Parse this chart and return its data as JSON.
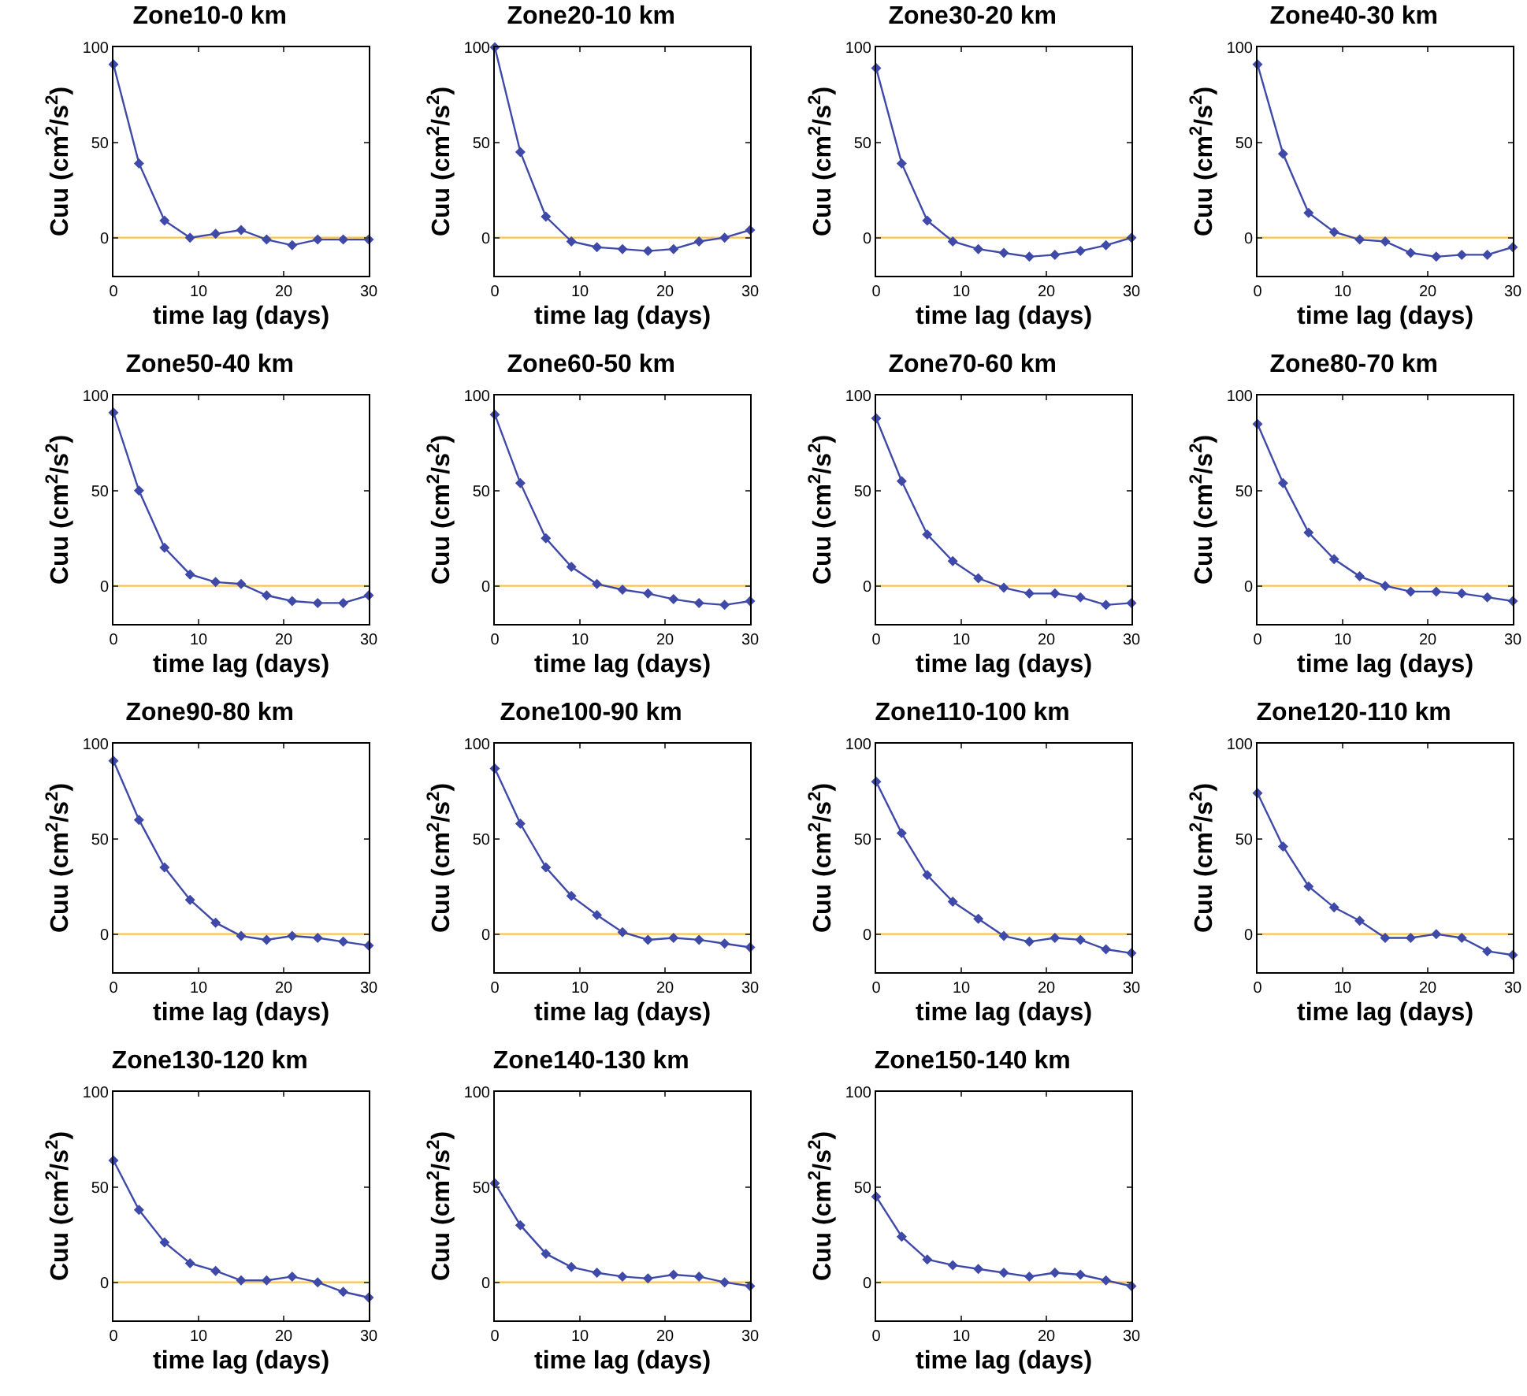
{
  "chart_data": [
    {
      "type": "line",
      "title": "Zone10-0 km",
      "xlabel": "time lag (days)",
      "ylabel": "Cuu (cm$^{2}$/s$^{2}$)",
      "x": [
        0,
        3,
        6,
        9,
        12,
        15,
        18,
        21,
        24,
        27,
        30
      ],
      "series": [
        {
          "color": "#3f4aa8",
          "values": [
            91,
            39,
            9,
            0,
            2,
            4,
            -1,
            -4,
            -1,
            -1,
            -1
          ]
        }
      ],
      "xlim": [
        0,
        30
      ],
      "ylim": [
        -20,
        100
      ],
      "xticks": [
        0,
        10,
        20,
        30
      ],
      "yticks": [
        0,
        50,
        100
      ],
      "ref_lines": [
        {
          "axis": "y",
          "value": 0,
          "color": "#ffc34a"
        }
      ],
      "marker": "diamond",
      "grid": false
    },
    {
      "type": "line",
      "title": "Zone20-10 km",
      "xlabel": "time lag (days)",
      "ylabel": "Cuu (cm$^{2}$/s$^{2}$)",
      "x": [
        0,
        3,
        6,
        9,
        12,
        15,
        18,
        21,
        24,
        27,
        30
      ],
      "series": [
        {
          "color": "#3f4aa8",
          "values": [
            100,
            45,
            11,
            -2,
            -5,
            -6,
            -7,
            -6,
            -2,
            0,
            4
          ]
        }
      ],
      "xlim": [
        0,
        30
      ],
      "ylim": [
        -20,
        100
      ],
      "xticks": [
        0,
        10,
        20,
        30
      ],
      "yticks": [
        0,
        50,
        100
      ],
      "ref_lines": [
        {
          "axis": "y",
          "value": 0,
          "color": "#ffc34a"
        }
      ],
      "marker": "diamond",
      "grid": false
    },
    {
      "type": "line",
      "title": "Zone30-20 km",
      "xlabel": "time lag (days)",
      "ylabel": "Cuu (cm$^{2}$/s$^{2}$)",
      "x": [
        0,
        3,
        6,
        9,
        12,
        15,
        18,
        21,
        24,
        27,
        30
      ],
      "series": [
        {
          "color": "#3f4aa8",
          "values": [
            89,
            39,
            9,
            -2,
            -6,
            -8,
            -10,
            -9,
            -7,
            -4,
            0
          ]
        }
      ],
      "xlim": [
        0,
        30
      ],
      "ylim": [
        -20,
        100
      ],
      "xticks": [
        0,
        10,
        20,
        30
      ],
      "yticks": [
        0,
        50,
        100
      ],
      "ref_lines": [
        {
          "axis": "y",
          "value": 0,
          "color": "#ffc34a"
        }
      ],
      "marker": "diamond",
      "grid": false
    },
    {
      "type": "line",
      "title": "Zone40-30 km",
      "xlabel": "time lag (days)",
      "ylabel": "Cuu (cm$^{2}$/s$^{2}$)",
      "x": [
        0,
        3,
        6,
        9,
        12,
        15,
        18,
        21,
        24,
        27,
        30
      ],
      "series": [
        {
          "color": "#3f4aa8",
          "values": [
            91,
            44,
            13,
            3,
            -1,
            -2,
            -8,
            -10,
            -9,
            -9,
            -5
          ]
        }
      ],
      "xlim": [
        0,
        30
      ],
      "ylim": [
        -20,
        100
      ],
      "xticks": [
        0,
        10,
        20,
        30
      ],
      "yticks": [
        0,
        50,
        100
      ],
      "ref_lines": [
        {
          "axis": "y",
          "value": 0,
          "color": "#ffc34a"
        }
      ],
      "marker": "diamond",
      "grid": false
    },
    {
      "type": "line",
      "title": "Zone50-40 km",
      "xlabel": "time lag (days)",
      "ylabel": "Cuu (cm$^{2}$/s$^{2}$)",
      "x": [
        0,
        3,
        6,
        9,
        12,
        15,
        18,
        21,
        24,
        27,
        30
      ],
      "series": [
        {
          "color": "#3f4aa8",
          "values": [
            91,
            50,
            20,
            6,
            2,
            1,
            -5,
            -8,
            -9,
            -9,
            -5
          ]
        }
      ],
      "xlim": [
        0,
        30
      ],
      "ylim": [
        -20,
        100
      ],
      "xticks": [
        0,
        10,
        20,
        30
      ],
      "yticks": [
        0,
        50,
        100
      ],
      "ref_lines": [
        {
          "axis": "y",
          "value": 0,
          "color": "#ffc34a"
        }
      ],
      "marker": "diamond",
      "grid": false
    },
    {
      "type": "line",
      "title": "Zone60-50 km",
      "xlabel": "time lag (days)",
      "ylabel": "Cuu (cm$^{2}$/s$^{2}$)",
      "x": [
        0,
        3,
        6,
        9,
        12,
        15,
        18,
        21,
        24,
        27,
        30
      ],
      "series": [
        {
          "color": "#3f4aa8",
          "values": [
            90,
            54,
            25,
            10,
            1,
            -2,
            -4,
            -7,
            -9,
            -10,
            -8
          ]
        }
      ],
      "xlim": [
        0,
        30
      ],
      "ylim": [
        -20,
        100
      ],
      "xticks": [
        0,
        10,
        20,
        30
      ],
      "yticks": [
        0,
        50,
        100
      ],
      "ref_lines": [
        {
          "axis": "y",
          "value": 0,
          "color": "#ffc34a"
        }
      ],
      "marker": "diamond",
      "grid": false
    },
    {
      "type": "line",
      "title": "Zone70-60 km",
      "xlabel": "time lag (days)",
      "ylabel": "Cuu (cm$^{2}$/s$^{2}$)",
      "x": [
        0,
        3,
        6,
        9,
        12,
        15,
        18,
        21,
        24,
        27,
        30
      ],
      "series": [
        {
          "color": "#3f4aa8",
          "values": [
            88,
            55,
            27,
            13,
            4,
            -1,
            -4,
            -4,
            -6,
            -10,
            -9
          ]
        }
      ],
      "xlim": [
        0,
        30
      ],
      "ylim": [
        -20,
        100
      ],
      "xticks": [
        0,
        10,
        20,
        30
      ],
      "yticks": [
        0,
        50,
        100
      ],
      "ref_lines": [
        {
          "axis": "y",
          "value": 0,
          "color": "#ffc34a"
        }
      ],
      "marker": "diamond",
      "grid": false
    },
    {
      "type": "line",
      "title": "Zone80-70 km",
      "xlabel": "time lag (days)",
      "ylabel": "Cuu (cm$^{2}$/s$^{2}$)",
      "x": [
        0,
        3,
        6,
        9,
        12,
        15,
        18,
        21,
        24,
        27,
        30
      ],
      "series": [
        {
          "color": "#3f4aa8",
          "values": [
            85,
            54,
            28,
            14,
            5,
            0,
            -3,
            -3,
            -4,
            -6,
            -8
          ]
        }
      ],
      "xlim": [
        0,
        30
      ],
      "ylim": [
        -20,
        100
      ],
      "xticks": [
        0,
        10,
        20,
        30
      ],
      "yticks": [
        0,
        50,
        100
      ],
      "ref_lines": [
        {
          "axis": "y",
          "value": 0,
          "color": "#ffc34a"
        }
      ],
      "marker": "diamond",
      "grid": false
    },
    {
      "type": "line",
      "title": "Zone90-80 km",
      "xlabel": "time lag (days)",
      "ylabel": "Cuu (cm$^{2}$/s$^{2}$)",
      "x": [
        0,
        3,
        6,
        9,
        12,
        15,
        18,
        21,
        24,
        27,
        30
      ],
      "series": [
        {
          "color": "#3f4aa8",
          "values": [
            91,
            60,
            35,
            18,
            6,
            -1,
            -3,
            -1,
            -2,
            -4,
            -6
          ]
        }
      ],
      "xlim": [
        0,
        30
      ],
      "ylim": [
        -20,
        100
      ],
      "xticks": [
        0,
        10,
        20,
        30
      ],
      "yticks": [
        0,
        50,
        100
      ],
      "ref_lines": [
        {
          "axis": "y",
          "value": 0,
          "color": "#ffc34a"
        }
      ],
      "marker": "diamond",
      "grid": false
    },
    {
      "type": "line",
      "title": "Zone100-90 km",
      "xlabel": "time lag (days)",
      "ylabel": "Cuu (cm$^{2}$/s$^{2}$)",
      "x": [
        0,
        3,
        6,
        9,
        12,
        15,
        18,
        21,
        24,
        27,
        30
      ],
      "series": [
        {
          "color": "#3f4aa8",
          "values": [
            87,
            58,
            35,
            20,
            10,
            1,
            -3,
            -2,
            -3,
            -5,
            -7
          ]
        }
      ],
      "xlim": [
        0,
        30
      ],
      "ylim": [
        -20,
        100
      ],
      "xticks": [
        0,
        10,
        20,
        30
      ],
      "yticks": [
        0,
        50,
        100
      ],
      "ref_lines": [
        {
          "axis": "y",
          "value": 0,
          "color": "#ffc34a"
        }
      ],
      "marker": "diamond",
      "grid": false
    },
    {
      "type": "line",
      "title": "Zone110-100 km",
      "xlabel": "time lag (days)",
      "ylabel": "Cuu (cm$^{2}$/s$^{2}$)",
      "x": [
        0,
        3,
        6,
        9,
        12,
        15,
        18,
        21,
        24,
        27,
        30
      ],
      "series": [
        {
          "color": "#3f4aa8",
          "values": [
            80,
            53,
            31,
            17,
            8,
            -1,
            -4,
            -2,
            -3,
            -8,
            -10
          ]
        }
      ],
      "xlim": [
        0,
        30
      ],
      "ylim": [
        -20,
        100
      ],
      "xticks": [
        0,
        10,
        20,
        30
      ],
      "yticks": [
        0,
        50,
        100
      ],
      "ref_lines": [
        {
          "axis": "y",
          "value": 0,
          "color": "#ffc34a"
        }
      ],
      "marker": "diamond",
      "grid": false
    },
    {
      "type": "line",
      "title": "Zone120-110 km",
      "xlabel": "time lag (days)",
      "ylabel": "Cuu (cm$^{2}$/s$^{2}$)",
      "x": [
        0,
        3,
        6,
        9,
        12,
        15,
        18,
        21,
        24,
        27,
        30
      ],
      "series": [
        {
          "color": "#3f4aa8",
          "values": [
            74,
            46,
            25,
            14,
            7,
            -2,
            -2,
            0,
            -2,
            -9,
            -11
          ]
        }
      ],
      "xlim": [
        0,
        30
      ],
      "ylim": [
        -20,
        100
      ],
      "xticks": [
        0,
        10,
        20,
        30
      ],
      "yticks": [
        0,
        50,
        100
      ],
      "ref_lines": [
        {
          "axis": "y",
          "value": 0,
          "color": "#ffc34a"
        }
      ],
      "marker": "diamond",
      "grid": false
    },
    {
      "type": "line",
      "title": "Zone130-120 km",
      "xlabel": "time lag (days)",
      "ylabel": "Cuu (cm$^{2}$/s$^{2}$)",
      "x": [
        0,
        3,
        6,
        9,
        12,
        15,
        18,
        21,
        24,
        27,
        30
      ],
      "series": [
        {
          "color": "#3f4aa8",
          "values": [
            64,
            38,
            21,
            10,
            6,
            1,
            1,
            3,
            0,
            -5,
            -8
          ]
        }
      ],
      "xlim": [
        0,
        30
      ],
      "ylim": [
        -20,
        100
      ],
      "xticks": [
        0,
        10,
        20,
        30
      ],
      "yticks": [
        0,
        50,
        100
      ],
      "ref_lines": [
        {
          "axis": "y",
          "value": 0,
          "color": "#ffc34a"
        }
      ],
      "marker": "diamond",
      "grid": false
    },
    {
      "type": "line",
      "title": "Zone140-130 km",
      "xlabel": "time lag (days)",
      "ylabel": "Cuu (cm$^{2}$/s$^{2}$)",
      "x": [
        0,
        3,
        6,
        9,
        12,
        15,
        18,
        21,
        24,
        27,
        30
      ],
      "series": [
        {
          "color": "#3f4aa8",
          "values": [
            52,
            30,
            15,
            8,
            5,
            3,
            2,
            4,
            3,
            0,
            -2
          ]
        }
      ],
      "xlim": [
        0,
        30
      ],
      "ylim": [
        -20,
        100
      ],
      "xticks": [
        0,
        10,
        20,
        30
      ],
      "yticks": [
        0,
        50,
        100
      ],
      "ref_lines": [
        {
          "axis": "y",
          "value": 0,
          "color": "#ffc34a"
        }
      ],
      "marker": "diamond",
      "grid": false
    },
    {
      "type": "line",
      "title": "Zone150-140 km",
      "xlabel": "time lag (days)",
      "ylabel": "Cuu (cm$^{2}$/s$^{2}$)",
      "x": [
        0,
        3,
        6,
        9,
        12,
        15,
        18,
        21,
        24,
        27,
        30
      ],
      "series": [
        {
          "color": "#3f4aa8",
          "values": [
            45,
            24,
            12,
            9,
            7,
            5,
            3,
            5,
            4,
            1,
            -2
          ]
        }
      ],
      "xlim": [
        0,
        30
      ],
      "ylim": [
        -20,
        100
      ],
      "xticks": [
        0,
        10,
        20,
        30
      ],
      "yticks": [
        0,
        50,
        100
      ],
      "ref_lines": [
        {
          "axis": "y",
          "value": 0,
          "color": "#ffc34a"
        }
      ],
      "marker": "diamond",
      "grid": false
    }
  ]
}
